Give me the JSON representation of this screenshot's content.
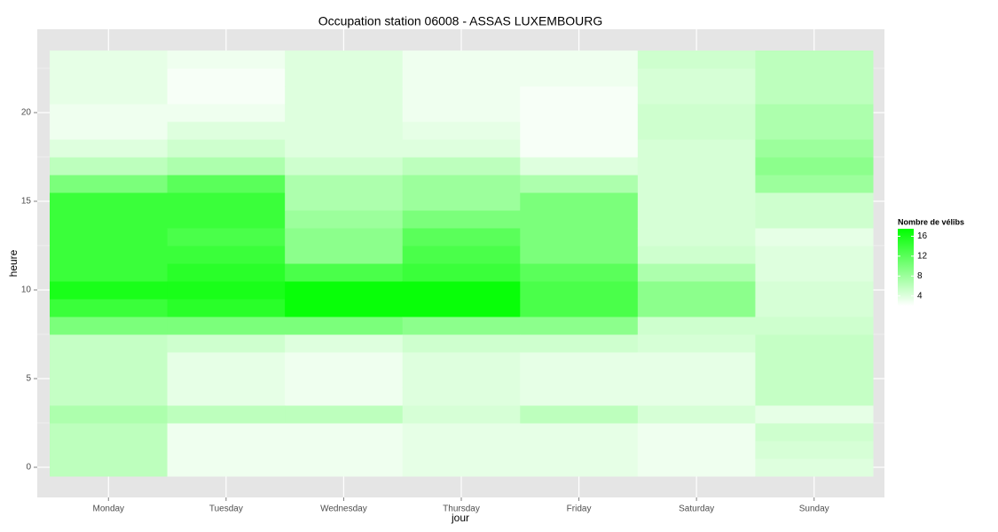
{
  "chart_data": {
    "type": "heatmap",
    "title": "Occupation station 06008 - ASSAS LUXEMBOURG",
    "xlabel": "jour",
    "ylabel": "heure",
    "categories": [
      "Monday",
      "Tuesday",
      "Wednesday",
      "Thursday",
      "Friday",
      "Saturday",
      "Sunday"
    ],
    "y": [
      0,
      1,
      2,
      3,
      4,
      5,
      6,
      7,
      8,
      9,
      10,
      11,
      12,
      13,
      14,
      15,
      16,
      17,
      18,
      19,
      20,
      21,
      22,
      23
    ],
    "values": [
      [
        6,
        6,
        6,
        7,
        5.5,
        5.5,
        5.5,
        5.5,
        10,
        14,
        16,
        14,
        14,
        14,
        14,
        14,
        10,
        6,
        4,
        3,
        3,
        3.5,
        3.5,
        3.5
      ],
      [
        3,
        3,
        3,
        6,
        3.5,
        3.5,
        3.5,
        5,
        10,
        15,
        16,
        15,
        14,
        13,
        14,
        14,
        12,
        7,
        5,
        4,
        3,
        2.5,
        2.5,
        3
      ],
      [
        3,
        3,
        3,
        6,
        3,
        3,
        3,
        4,
        10,
        17,
        17,
        13,
        9,
        9,
        8,
        7,
        7,
        5,
        4,
        4,
        4,
        4,
        4,
        4
      ],
      [
        3.5,
        3.5,
        3.5,
        4.5,
        4,
        4,
        4,
        5,
        9,
        17,
        17,
        14,
        13,
        12,
        10,
        8,
        8,
        6,
        4,
        3.5,
        3,
        3,
        3,
        3
      ],
      [
        3.5,
        3.5,
        3.5,
        6,
        3.5,
        3.5,
        3.5,
        5,
        9,
        13,
        13,
        12,
        10,
        10,
        10,
        10,
        7,
        4,
        2.5,
        2.5,
        2.5,
        2.5,
        3,
        3
      ],
      [
        3,
        3,
        3,
        4.5,
        3.5,
        3.5,
        3.5,
        4.5,
        5,
        9,
        9,
        7,
        5,
        4.5,
        4.5,
        4.5,
        4.5,
        4.5,
        4.5,
        5,
        5,
        4.5,
        4.5,
        5
      ],
      [
        4,
        4.5,
        5,
        3.5,
        5.5,
        5.5,
        5.5,
        5.5,
        5,
        4.5,
        4.5,
        4,
        4,
        3.5,
        5,
        5,
        8,
        9,
        8,
        7,
        7,
        6,
        6,
        6
      ]
    ],
    "ylim": [
      -0.5,
      23.5
    ],
    "yticks": [
      0,
      5,
      10,
      15,
      20
    ],
    "grid": true,
    "legend": {
      "title": "Nombre de vélibs",
      "ticks": [
        4,
        8,
        12,
        16
      ]
    },
    "zlim": [
      2,
      17.5
    ],
    "colors": {
      "low": "#ffffff",
      "high": "#00ff00"
    }
  }
}
